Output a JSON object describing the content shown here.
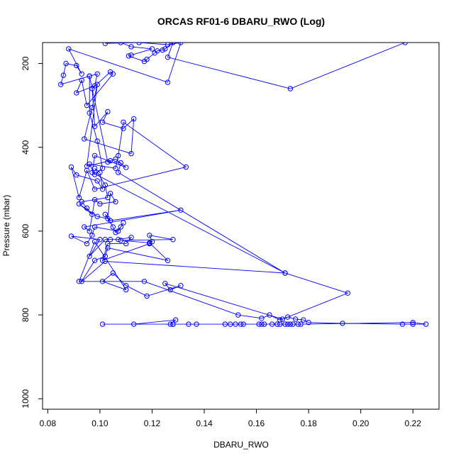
{
  "chart_data": {
    "type": "line",
    "title": "ORCAS RF01-6 DBARU_RWO (Log)",
    "xlabel": "DBARU_RWO",
    "ylabel": "Pressure (mbar)",
    "xlim": [
      0.078,
      0.23
    ],
    "ylim": [
      1025,
      150
    ],
    "y_reversed": true,
    "grid": false,
    "marker": "open-circle",
    "line_color": "#0000ff",
    "x_ticks": [
      0.08,
      0.1,
      0.12,
      0.14,
      0.16,
      0.18,
      0.2,
      0.22
    ],
    "x_tick_labels": [
      "0.08",
      "0.10",
      "0.12",
      "0.14",
      "0.16",
      "0.18",
      "0.20",
      "0.22"
    ],
    "y_ticks": [
      200,
      400,
      600,
      800,
      1000
    ],
    "y_tick_labels": [
      "200",
      "400",
      "600",
      "800",
      "1000"
    ],
    "series": [
      {
        "x": [
          0.217,
          0.173,
          0.126,
          0.128,
          0.125,
          0.124,
          0.122,
          0.121,
          0.118,
          0.117,
          0.111,
          0.112,
          0.12,
          0.112,
          0.108,
          0.102,
          0.115,
          0.126,
          0.131,
          0.126,
          0.088,
          0.093,
          0.091,
          0.087,
          0.086,
          0.085,
          0.096,
          0.099,
          0.098,
          0.091,
          0.093,
          0.095,
          0.105,
          0.104,
          0.097,
          0.098,
          0.103,
          0.101,
          0.109,
          0.113,
          0.112,
          0.094,
          0.097,
          0.099,
          0.095,
          0.104,
          0.106,
          0.11,
          0.098,
          0.097,
          0.171,
          0.107,
          0.108,
          0.103,
          0.096,
          0.096,
          0.099,
          0.101,
          0.098,
          0.096,
          0.106,
          0.107,
          0.109,
          0.133,
          0.098,
          0.095,
          0.092,
          0.089,
          0.091,
          0.099,
          0.101,
          0.1,
          0.098,
          0.102,
          0.103,
          0.093,
          0.095,
          0.097,
          0.092,
          0.099,
          0.103,
          0.104,
          0.106,
          0.1,
          0.098,
          0.096,
          0.094,
          0.131,
          0.104,
          0.102,
          0.105,
          0.106,
          0.108,
          0.109,
          0.107,
          0.098,
          0.097,
          0.095,
          0.089,
          0.1,
          0.096,
          0.102,
          0.104,
          0.107,
          0.112,
          0.11,
          0.103,
          0.101,
          0.119,
          0.12,
          0.119,
          0.128,
          0.108,
          0.119,
          0.126,
          0.103,
          0.102,
          0.098,
          0.093,
          0.102,
          0.171,
          0.195,
          0.17,
          0.125,
          0.127,
          0.131,
          0.118,
          0.11,
          0.105,
          0.101,
          0.11,
          0.098,
          0.092,
          0.117,
          0.153,
          0.162,
          0.165,
          0.169,
          0.172,
          0.175,
          0.178,
          0.18,
          0.193,
          0.216,
          0.22,
          0.225,
          0.22,
          0.177,
          0.176,
          0.174,
          0.172,
          0.168,
          0.163,
          0.161,
          0.155,
          0.152,
          0.15,
          0.148,
          0.134,
          0.128,
          0.127,
          0.129,
          0.113,
          0.101,
          0.128,
          0.137,
          0.154,
          0.162,
          0.166,
          0.169,
          0.171,
          0.173
        ],
        "y": [
          150,
          260,
          185,
          150,
          165,
          168,
          170,
          175,
          190,
          195,
          182,
          180,
          165,
          160,
          150,
          152,
          150,
          155,
          150,
          245,
          165,
          225,
          205,
          200,
          228,
          250,
          230,
          225,
          253,
          270,
          240,
          300,
          225,
          220,
          260,
          350,
          315,
          340,
          355,
          332,
          415,
          380,
          305,
          250,
          445,
          432,
          428,
          448,
          420,
          460,
          700,
          460,
          437,
          435,
          230,
          318,
          385,
          450,
          465,
          440,
          450,
          420,
          340,
          447,
          500,
          455,
          520,
          447,
          466,
          480,
          500,
          460,
          450,
          490,
          520,
          530,
          545,
          560,
          535,
          565,
          570,
          510,
          530,
          535,
          525,
          600,
          590,
          550,
          575,
          560,
          590,
          603,
          590,
          580,
          600,
          590,
          610,
          630,
          612,
          620,
          660,
          620,
          620,
          620,
          615,
          630,
          630,
          670,
          630,
          625,
          610,
          620,
          622,
          628,
          670,
          640,
          660,
          670,
          720,
          672,
          700,
          748,
          810,
          725,
          740,
          730,
          755,
          730,
          700,
          720,
          740,
          625,
          720,
          720,
          800,
          808,
          800,
          812,
          805,
          810,
          812,
          818,
          820,
          822,
          822,
          822,
          818,
          822,
          822,
          822,
          822,
          822,
          822,
          822,
          822,
          822,
          822,
          822,
          822,
          822,
          822,
          812,
          822,
          822,
          822,
          822,
          822,
          822,
          822,
          822,
          822,
          822
        ]
      }
    ]
  }
}
